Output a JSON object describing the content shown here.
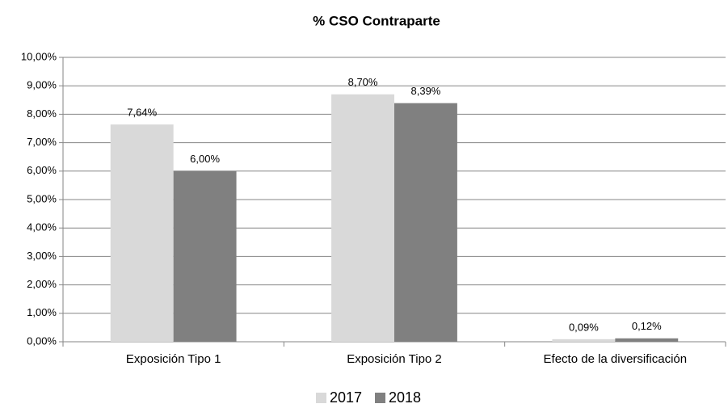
{
  "chart_data": {
    "type": "bar",
    "title": "% CSO Contraparte",
    "categories": [
      "Exposición Tipo 1",
      "Exposición Tipo 2",
      "Efecto de la diversificación"
    ],
    "series": [
      {
        "name": "2017",
        "color": "#d9d9d9",
        "values": [
          7.64,
          8.7,
          0.09
        ],
        "value_labels": [
          "7,64%",
          "8,70%",
          "0,09%"
        ]
      },
      {
        "name": "2018",
        "color": "#808080",
        "values": [
          6.0,
          8.39,
          0.12
        ],
        "value_labels": [
          "6,00%",
          "8,39%",
          "0,12%"
        ]
      }
    ],
    "ylim": [
      0,
      10
    ],
    "yticks": [
      {
        "value": 0,
        "label": "0,00%"
      },
      {
        "value": 1,
        "label": "1,00%"
      },
      {
        "value": 2,
        "label": "2,00%"
      },
      {
        "value": 3,
        "label": "3,00%"
      },
      {
        "value": 4,
        "label": "4,00%"
      },
      {
        "value": 5,
        "label": "5,00%"
      },
      {
        "value": 6,
        "label": "6,00%"
      },
      {
        "value": 7,
        "label": "7,00%"
      },
      {
        "value": 8,
        "label": "8,00%"
      },
      {
        "value": 9,
        "label": "9,00%"
      },
      {
        "value": 10,
        "label": "10,00%"
      }
    ],
    "grid": true,
    "legend": "bottom"
  }
}
